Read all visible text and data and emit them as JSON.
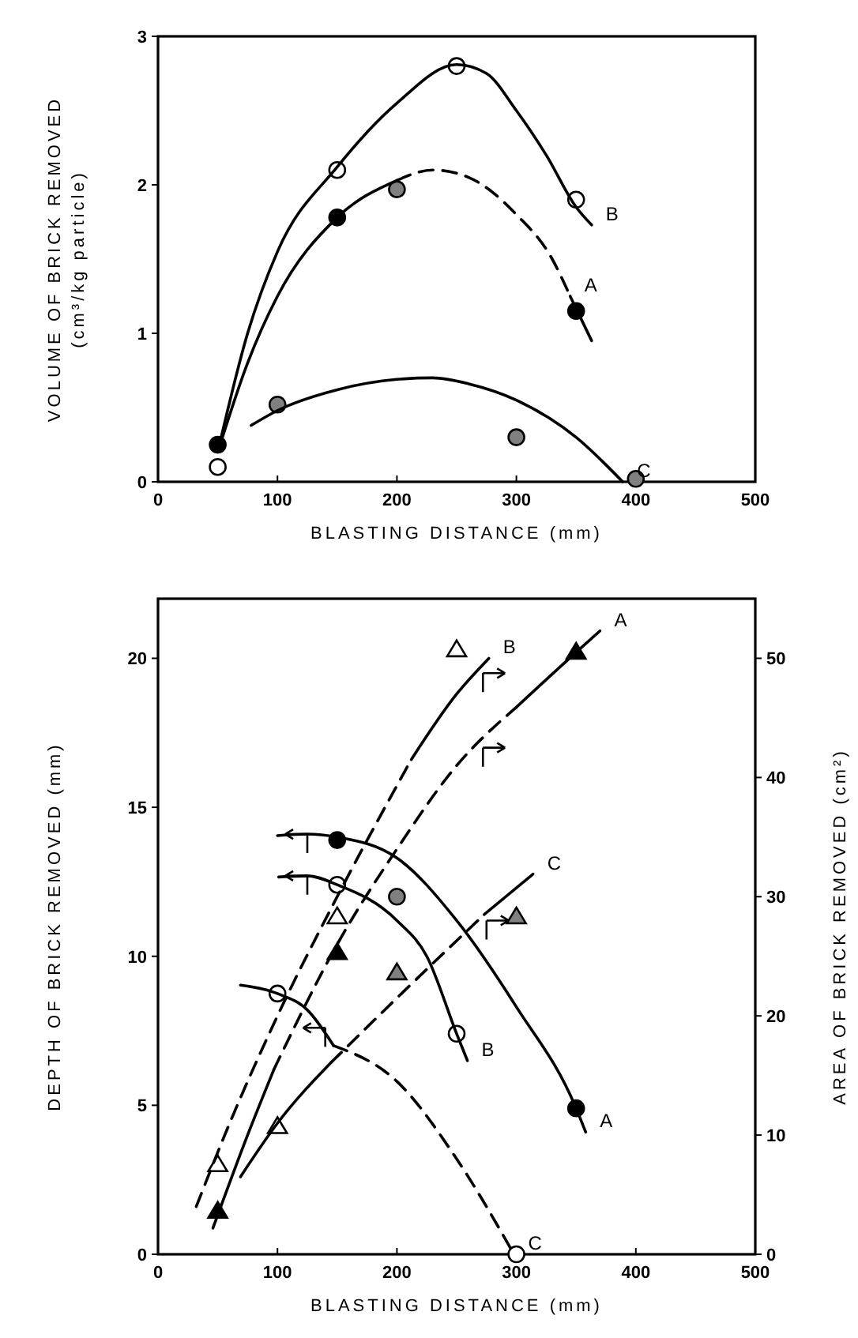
{
  "chart_data": [
    {
      "type": "scatter",
      "xlabel": "BLASTING DISTANCE (mm)",
      "ylabel": "VOLUME OF BRICK REMOVED\n(cm³/kg particle)",
      "xlim": [
        0,
        500
      ],
      "xticks": [
        0,
        100,
        200,
        300,
        400,
        500
      ],
      "ylim": [
        0,
        3
      ],
      "yticks": [
        0,
        1,
        2,
        3
      ],
      "grid": false,
      "series": [
        {
          "marker": "circle",
          "color": "#000000",
          "x": [
            50,
            150,
            350
          ],
          "values": [
            0.25,
            1.78,
            1.15
          ]
        },
        {
          "marker": "circle",
          "color": "#ffffff",
          "x": [
            50,
            150,
            250,
            350
          ],
          "values": [
            0.1,
            2.1,
            2.8,
            1.9
          ]
        },
        {
          "marker": "circle",
          "color": "#808080",
          "x": [
            100,
            200,
            300,
            400
          ],
          "values": [
            0.52,
            1.97,
            0.3,
            0.02
          ]
        },
        {
          "type": "line",
          "name": "B",
          "marker": "none",
          "line_style": "solid",
          "color": "#000000",
          "x": [
            50,
            75,
            100,
            150,
            200,
            250,
            275,
            300,
            325,
            350,
            363
          ],
          "values": [
            0.2,
            1.0,
            1.55,
            2.12,
            2.55,
            2.81,
            2.75,
            2.5,
            2.2,
            1.85,
            1.73
          ]
        },
        {
          "type": "line",
          "marker": "none",
          "line_style": "solid",
          "color": "#000000",
          "x": [
            50,
            75,
            100,
            150,
            200
          ],
          "values": [
            0.2,
            0.8,
            1.25,
            1.78,
            2.03
          ]
        },
        {
          "type": "line",
          "name": "A",
          "marker": "none",
          "line_style": "dashed",
          "color": "#000000",
          "x": [
            200,
            230,
            260,
            300,
            330,
            345
          ],
          "values": [
            2.03,
            2.1,
            2.05,
            1.8,
            1.5,
            1.25
          ]
        },
        {
          "type": "line",
          "marker": "none",
          "line_style": "solid",
          "color": "#000000",
          "x": [
            345,
            363
          ],
          "values": [
            1.25,
            0.95
          ]
        },
        {
          "type": "line",
          "name": "C",
          "marker": "none",
          "line_style": "solid",
          "color": "#000000",
          "x": [
            78,
            100,
            150,
            200,
            230,
            260,
            300,
            350,
            389
          ],
          "values": [
            0.38,
            0.48,
            0.62,
            0.69,
            0.7,
            0.66,
            0.55,
            0.3,
            0
          ]
        }
      ]
    },
    {
      "type": "scatter",
      "xlabel": "BLASTING DISTANCE (mm)",
      "ylabel": "DEPTH OF BRICK REMOVED (mm)",
      "y2label": "AREA OF BRICK REMOVED (cm²)",
      "xlim": [
        0,
        500
      ],
      "xticks": [
        0,
        100,
        200,
        300,
        400,
        500
      ],
      "ylim": [
        0,
        22
      ],
      "yticks": [
        0,
        5,
        10,
        15,
        20
      ],
      "y2lim": [
        0,
        55
      ],
      "y2ticks": [
        0,
        10,
        20,
        30,
        40,
        50
      ],
      "grid": false,
      "series": [
        {
          "marker": "circle",
          "color": "#000000",
          "x": [
            150,
            350
          ],
          "values": [
            13.9,
            4.9
          ]
        },
        {
          "marker": "circle",
          "color": "#ffffff",
          "x": [
            100,
            150,
            250,
            300
          ],
          "values": [
            8.75,
            12.4,
            7.4,
            0
          ]
        },
        {
          "marker": "circle",
          "color": "#808080",
          "x": [
            200
          ],
          "values": [
            12
          ]
        },
        {
          "type": "line",
          "name": "A",
          "marker": "none",
          "line_style": "solid",
          "color": "#000000",
          "x": [
            100,
            125,
            150,
            200,
            250,
            300,
            350,
            358
          ],
          "values": [
            14.05,
            14.1,
            14,
            13.3,
            11.2,
            8.3,
            4.9,
            4.1
          ]
        },
        {
          "type": "line",
          "name": "B",
          "marker": "none",
          "line_style": "solid",
          "color": "#000000",
          "x": [
            101,
            125,
            150,
            200,
            225,
            250,
            259
          ],
          "values": [
            12.66,
            12.7,
            12.4,
            11.2,
            10,
            7.4,
            6.5
          ]
        },
        {
          "type": "line",
          "marker": "none",
          "line_style": "solid",
          "color": "#000000",
          "x": [
            69,
            100,
            125,
            147
          ],
          "values": [
            9.03,
            8.75,
            8.2,
            7.0
          ]
        },
        {
          "type": "line",
          "name": "C",
          "marker": "none",
          "line_style": "dashed",
          "color": "#000000",
          "x": [
            147,
            200,
            250,
            298
          ],
          "values": [
            7.0,
            5.8,
            3.2,
            0
          ]
        },
        {
          "type": "scatter",
          "axis": "y2",
          "marker": "triangle",
          "color": "#000000",
          "x": [
            50,
            150,
            350
          ],
          "values": [
            3.6,
            25.3,
            50.5
          ]
        },
        {
          "type": "scatter",
          "axis": "y2",
          "marker": "triangle",
          "color": "#ffffff",
          "x": [
            50,
            100,
            150,
            250
          ],
          "values": [
            7.5,
            10.7,
            28.3,
            50.7
          ]
        },
        {
          "type": "scatter",
          "axis": "y2",
          "marker": "triangle",
          "color": "#808080",
          "x": [
            200,
            300
          ],
          "values": [
            23.6,
            28.3
          ]
        },
        {
          "type": "line",
          "axis": "y2",
          "marker": "none",
          "line_style": "dashed",
          "color": "#000000",
          "x": [
            32,
            60,
            100,
            150,
            212
          ],
          "values": [
            4,
            11,
            20,
            30,
            41.5
          ]
        },
        {
          "type": "line",
          "axis": "y2",
          "name": "B",
          "marker": "none",
          "line_style": "solid",
          "color": "#000000",
          "x": [
            212,
            250,
            277
          ],
          "values": [
            41.5,
            47,
            50
          ]
        },
        {
          "type": "line",
          "axis": "y2",
          "marker": "none",
          "line_style": "solid",
          "color": "#000000",
          "x": [
            46,
            75,
            97
          ],
          "values": [
            2.2,
            10,
            15.5
          ]
        },
        {
          "type": "line",
          "axis": "y2",
          "marker": "none",
          "line_style": "dashed",
          "color": "#000000",
          "x": [
            97,
            150,
            200,
            250,
            300
          ],
          "values": [
            15.5,
            26,
            34,
            41,
            45.9
          ]
        },
        {
          "type": "line",
          "axis": "y2",
          "name": "A",
          "marker": "none",
          "line_style": "solid",
          "color": "#000000",
          "x": [
            300,
            350,
            370
          ],
          "values": [
            45.9,
            50.5,
            52.3
          ]
        },
        {
          "type": "line",
          "axis": "y2",
          "marker": "none",
          "line_style": "solid",
          "color": "#000000",
          "x": [
            69,
            100,
            145
          ],
          "values": [
            6.5,
            11,
            16.1
          ]
        },
        {
          "type": "line",
          "axis": "y2",
          "marker": "none",
          "line_style": "dashed",
          "color": "#000000",
          "x": [
            145,
            200,
            273
          ],
          "values": [
            16.1,
            21.5,
            28.5
          ]
        },
        {
          "type": "line",
          "axis": "y2",
          "name": "C",
          "marker": "none",
          "line_style": "solid",
          "color": "#000000",
          "x": [
            273,
            314
          ],
          "values": [
            28.5,
            31.9
          ]
        }
      ]
    }
  ]
}
